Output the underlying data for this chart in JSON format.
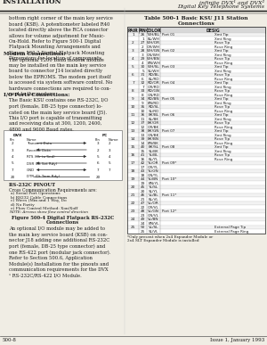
{
  "header_left": "INSTALLATION",
  "header_right_line1": "infinite DVX¹ and DVX²",
  "header_right_line2": "Digital Key Telephone Systems",
  "footer_left": "500-8",
  "footer_right": "Issue 1, January 1993",
  "table_title_line1": "Table 500-1 Basic KSU J11 Station",
  "table_title_line2": "Connections",
  "table_headers": [
    "PAIR",
    "PIN",
    "COLOR",
    "DESIG"
  ],
  "table_rows": [
    [
      "1",
      "26",
      "WH/BL",
      "Port 01",
      "Xmt Tip"
    ],
    [
      "",
      "1",
      "BL/WH",
      "",
      "Xmt Ring"
    ],
    [
      "2",
      "27",
      "WH/OR",
      "",
      "Rcve Tip"
    ],
    [
      "",
      "2",
      "OR/WH",
      "",
      "Rcve Ring"
    ],
    [
      "3",
      "28",
      "WH/GN",
      "Port 02",
      "Xmt Tip"
    ],
    [
      "",
      "3",
      "GN/WH",
      "",
      "Xmt Ring"
    ],
    [
      "4",
      "29",
      "WH/BN",
      "",
      "Rcve Tip"
    ],
    [
      "",
      "4",
      "BN/WH",
      "",
      "Rcve Ring"
    ],
    [
      "5",
      "30",
      "WH/SL",
      "Port 03",
      "Xmt Tip"
    ],
    [
      "",
      "5",
      "SL/WH",
      "",
      "Xmt Ring"
    ],
    [
      "6",
      "31",
      "RD/BL",
      "",
      "Rcve Tip"
    ],
    [
      "",
      "6",
      "BL/RD",
      "",
      "Rcve Ring"
    ],
    [
      "7",
      "32",
      "RD/OR",
      "Port 04",
      "Xmt Tip"
    ],
    [
      "",
      "7",
      "OR/RD",
      "",
      "Xmt Ring"
    ],
    [
      "8",
      "33",
      "RD/GN",
      "",
      "Rcve Tip"
    ],
    [
      "",
      "8",
      "GN/RD",
      "",
      "Rcve Ring"
    ],
    [
      "9",
      "34",
      "RD/BN",
      "Port 05",
      "Xmt Tip"
    ],
    [
      "",
      "9",
      "BN/RD",
      "",
      "Xmt Ring"
    ],
    [
      "10",
      "35",
      "RD/SL",
      "",
      "Rcve Tip"
    ],
    [
      "",
      "10",
      "SL/RD",
      "",
      "Rcve Ring"
    ],
    [
      "11",
      "36",
      "BK/BL",
      "Port 06",
      "Xmt Tip"
    ],
    [
      "",
      "11",
      "BL/BK",
      "",
      "Xmt Ring"
    ],
    [
      "12",
      "37",
      "BK/OR",
      "",
      "Rcve Tip"
    ],
    [
      "",
      "12",
      "OR/BK",
      "",
      "Rcve Ring"
    ],
    [
      "13",
      "38",
      "BK/GN",
      "Port 07",
      "Xmt Tip"
    ],
    [
      "",
      "13",
      "GN/BK",
      "",
      "Xmt Ring"
    ],
    [
      "14",
      "39",
      "BK/BN",
      "",
      "Rcve Tip"
    ],
    [
      "",
      "14",
      "BN/BK",
      "",
      "Rcve Ring"
    ],
    [
      "15",
      "40",
      "BK/SL",
      "Port 08",
      "Xmt Tip"
    ],
    [
      "",
      "15",
      "SL/BK",
      "",
      "Xmt Ring"
    ],
    [
      "16",
      "41",
      "YL/BL",
      "",
      "Rcve Tip"
    ],
    [
      "",
      "16",
      "BL/YL",
      "",
      "Rcve Ring"
    ],
    [
      "17",
      "42",
      "YL/OR",
      "Port 09*",
      ""
    ],
    [
      "",
      "17",
      "OR/YL",
      "",
      ""
    ],
    [
      "18",
      "43",
      "YL/GN",
      "",
      ""
    ],
    [
      "",
      "18",
      "GN/YL",
      "",
      ""
    ],
    [
      "19",
      "44",
      "YL/BN",
      "Port 10*",
      ""
    ],
    [
      "",
      "19",
      "BN/YL",
      "",
      ""
    ],
    [
      "20",
      "45",
      "YL/SL",
      "",
      ""
    ],
    [
      "",
      "20",
      "SL/YL",
      "",
      ""
    ],
    [
      "21",
      "46",
      "VL/BL",
      "Port 11*",
      ""
    ],
    [
      "",
      "21",
      "BL/VL",
      "",
      ""
    ],
    [
      "22",
      "47",
      "VL/OR",
      "",
      ""
    ],
    [
      "",
      "22",
      "OR/VL",
      "",
      ""
    ],
    [
      "23",
      "48",
      "VL/GN",
      "Port 12*",
      ""
    ],
    [
      "",
      "23",
      "GN/VL",
      "",
      ""
    ],
    [
      "24",
      "49",
      "VL/BN",
      "",
      ""
    ],
    [
      "",
      "24",
      "BN/VL",
      "",
      ""
    ],
    [
      "25",
      "50",
      "VL/SL",
      "",
      "External Page Tip"
    ],
    [
      "",
      "25",
      "SL/VL",
      "",
      "External Page Ring"
    ]
  ],
  "table_footnote_line1": "*Only present when 2x4 Expander Module or",
  "table_footnote_line2": "2x4 SLT Expander Module is installed",
  "bg_color": "#f0ede4",
  "text_color": "#1a1a1a",
  "header_line_color": "#333333"
}
